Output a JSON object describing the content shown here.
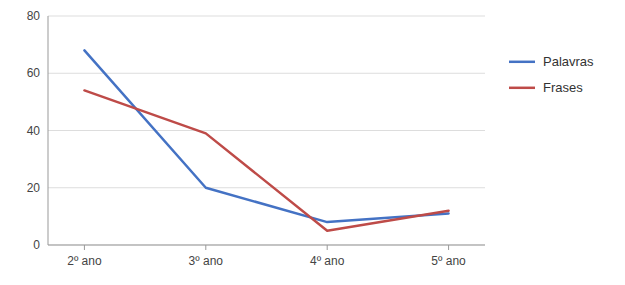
{
  "chart_data": {
    "type": "line",
    "categories": [
      "2º ano",
      "3º ano",
      "4º ano",
      "5º ano"
    ],
    "series": [
      {
        "name": "Palavras",
        "color": "#4472C4",
        "values": [
          68,
          20,
          8,
          11
        ]
      },
      {
        "name": "Frases",
        "color": "#BE4B48",
        "values": [
          54,
          39,
          5,
          12
        ]
      }
    ],
    "ylim": [
      0,
      80
    ],
    "yticks": [
      0,
      20,
      40,
      60,
      80
    ],
    "grid": true,
    "legend": "right"
  }
}
